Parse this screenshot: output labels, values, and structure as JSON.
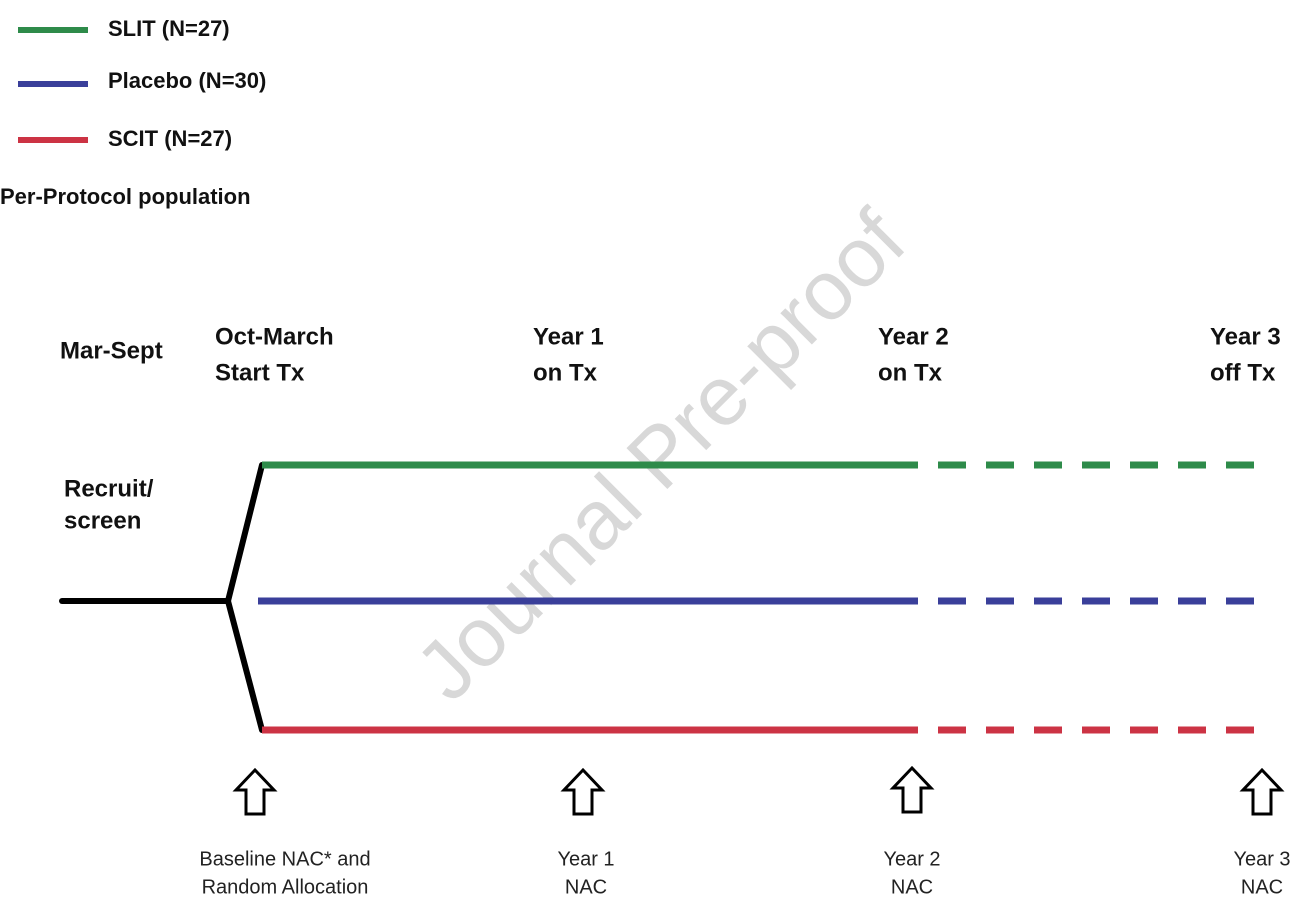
{
  "legend": [
    {
      "label": "SLIT (N=27)",
      "color": "#2e8b4a"
    },
    {
      "label": "Placebo (N=30)",
      "color": "#3a3f9a"
    },
    {
      "label": "SCIT (N=27)",
      "color": "#cc3344"
    }
  ],
  "population_label": "Per-Protocol population",
  "phases": [
    {
      "lines": [
        "Mar-Sept"
      ]
    },
    {
      "lines": [
        "Oct-March",
        "Start Tx"
      ]
    },
    {
      "lines": [
        "Year 1",
        "on Tx"
      ]
    },
    {
      "lines": [
        "Year 2",
        "on Tx"
      ]
    },
    {
      "lines": [
        "Year 3",
        "off Tx"
      ]
    }
  ],
  "side_label": [
    "Recruit/",
    "screen"
  ],
  "milestones": [
    {
      "lines": [
        "Baseline NAC* and",
        "Random Allocation"
      ]
    },
    {
      "lines": [
        "Year 1",
        "NAC"
      ]
    },
    {
      "lines": [
        "Year 2",
        "NAC"
      ]
    },
    {
      "lines": [
        "Year 3",
        "NAC"
      ]
    }
  ],
  "watermark": "Journal Pre-proof"
}
